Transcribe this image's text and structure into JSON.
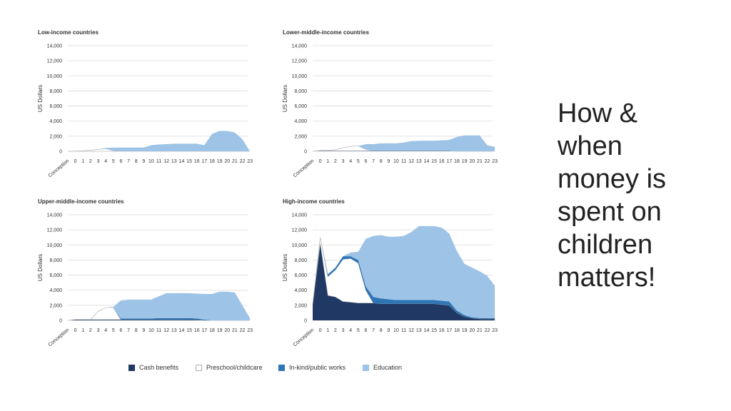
{
  "slide": {
    "title_lines": [
      "How &",
      "when",
      "money is",
      "spent on",
      "children",
      "matters!"
    ]
  },
  "colors": {
    "cash": "#1f3864",
    "preschool": "#ffffff",
    "inkind": "#2e75b6",
    "education": "#9dc3e6",
    "grid": "#d9d9d9"
  },
  "legend": [
    {
      "key": "cash",
      "label": "Cash benefits"
    },
    {
      "key": "preschool",
      "label": "Preschool/childcare"
    },
    {
      "key": "inkind",
      "label": "In-kind/public works"
    },
    {
      "key": "education",
      "label": "Education"
    }
  ],
  "chart_data": [
    {
      "type": "area",
      "stacked": true,
      "title": "Low-income countries",
      "ylabel": "US Dollars",
      "ylim": [
        0,
        14000
      ],
      "yticks": [
        "0",
        "2,000",
        "4,000",
        "6,000",
        "8,000",
        "10,000",
        "12,000",
        "14,000"
      ],
      "categories": [
        "Conception",
        "0",
        "1",
        "2",
        "3",
        "4",
        "5",
        "6",
        "7",
        "8",
        "9",
        "10",
        "11",
        "12",
        "13",
        "14",
        "15",
        "16",
        "17",
        "18",
        "19",
        "20",
        "21",
        "22",
        "23"
      ],
      "series": [
        {
          "name": "Cash benefits",
          "values": [
            0,
            0,
            0,
            0,
            0,
            0,
            0,
            0,
            0,
            0,
            0,
            0,
            0,
            0,
            0,
            0,
            0,
            0,
            0,
            0,
            0,
            0,
            0,
            0,
            0
          ]
        },
        {
          "name": "Preschool/childcare",
          "values": [
            0,
            20,
            60,
            150,
            250,
            350,
            80,
            0,
            0,
            0,
            0,
            0,
            0,
            0,
            0,
            0,
            0,
            0,
            0,
            0,
            0,
            0,
            0,
            0,
            0
          ]
        },
        {
          "name": "In-kind/public works",
          "values": [
            0,
            0,
            0,
            0,
            0,
            0,
            0,
            0,
            0,
            0,
            0,
            0,
            0,
            0,
            0,
            0,
            0,
            0,
            0,
            0,
            0,
            0,
            0,
            0,
            0
          ]
        },
        {
          "name": "Education",
          "values": [
            0,
            0,
            0,
            0,
            0,
            100,
            400,
            500,
            500,
            500,
            500,
            800,
            900,
            950,
            1000,
            1000,
            1000,
            1000,
            800,
            2300,
            2700,
            2700,
            2500,
            1600,
            0
          ]
        }
      ]
    },
    {
      "type": "area",
      "stacked": true,
      "title": "Lower-middle-income countries",
      "ylabel": "US Dollars",
      "ylim": [
        0,
        14000
      ],
      "yticks": [
        "0",
        "2,000",
        "4,000",
        "6,000",
        "8,000",
        "10,000",
        "12,000",
        "14,000"
      ],
      "categories": [
        "Conception",
        "0",
        "1",
        "2",
        "3",
        "4",
        "5",
        "6",
        "7",
        "8",
        "9",
        "10",
        "11",
        "12",
        "13",
        "14",
        "15",
        "16",
        "17",
        "18",
        "19",
        "20",
        "21",
        "22",
        "23"
      ],
      "series": [
        {
          "name": "Cash benefits",
          "values": [
            0,
            50,
            50,
            50,
            50,
            50,
            50,
            50,
            50,
            50,
            50,
            50,
            50,
            50,
            50,
            50,
            50,
            50,
            50,
            0,
            0,
            0,
            0,
            0,
            0
          ]
        },
        {
          "name": "Preschool/childcare",
          "values": [
            0,
            50,
            80,
            150,
            400,
            600,
            650,
            200,
            0,
            0,
            0,
            0,
            0,
            0,
            0,
            0,
            0,
            0,
            0,
            0,
            0,
            0,
            0,
            0,
            0
          ]
        },
        {
          "name": "In-kind/public works",
          "values": [
            0,
            0,
            0,
            0,
            0,
            0,
            0,
            0,
            0,
            0,
            0,
            0,
            0,
            0,
            0,
            0,
            0,
            0,
            0,
            0,
            0,
            0,
            0,
            0,
            0
          ]
        },
        {
          "name": "Education",
          "values": [
            0,
            0,
            0,
            0,
            0,
            0,
            0,
            700,
            900,
            1000,
            1000,
            1000,
            1100,
            1300,
            1350,
            1350,
            1350,
            1400,
            1450,
            1900,
            2100,
            2100,
            2100,
            800,
            600
          ]
        }
      ]
    },
    {
      "type": "area",
      "stacked": true,
      "title": "Upper-middle-income countries",
      "ylabel": "US Dollars",
      "ylim": [
        0,
        14000
      ],
      "yticks": [
        "0",
        "2,000",
        "4,000",
        "6,000",
        "8,000",
        "10,000",
        "12,000",
        "14,000"
      ],
      "categories": [
        "Conception",
        "0",
        "1",
        "2",
        "3",
        "4",
        "5",
        "6",
        "7",
        "8",
        "9",
        "10",
        "11",
        "12",
        "13",
        "14",
        "15",
        "16",
        "17",
        "18",
        "19",
        "20",
        "21",
        "22",
        "23"
      ],
      "series": [
        {
          "name": "Cash benefits",
          "values": [
            0,
            100,
            100,
            100,
            100,
            100,
            100,
            100,
            100,
            100,
            100,
            100,
            100,
            100,
            100,
            100,
            100,
            100,
            0,
            0,
            0,
            0,
            0,
            0,
            0
          ]
        },
        {
          "name": "Preschool/childcare",
          "values": [
            0,
            0,
            0,
            0,
            1100,
            1600,
            1600,
            0,
            0,
            0,
            0,
            0,
            0,
            0,
            0,
            0,
            0,
            0,
            0,
            0,
            0,
            0,
            0,
            0,
            0
          ]
        },
        {
          "name": "In-kind/public works",
          "values": [
            0,
            0,
            0,
            0,
            0,
            0,
            0,
            150,
            150,
            150,
            150,
            150,
            200,
            200,
            200,
            200,
            200,
            150,
            100,
            0,
            0,
            0,
            0,
            0,
            0
          ]
        },
        {
          "name": "Education",
          "values": [
            0,
            0,
            0,
            0,
            0,
            0,
            100,
            2400,
            2500,
            2500,
            2500,
            2500,
            2900,
            3300,
            3300,
            3300,
            3300,
            3300,
            3400,
            3500,
            3800,
            3800,
            3700,
            2000,
            300
          ]
        }
      ]
    },
    {
      "type": "area",
      "stacked": true,
      "title": "High-income countries",
      "ylabel": "US Dollars",
      "ylim": [
        0,
        14000
      ],
      "yticks": [
        "0",
        "2,000",
        "4,000",
        "6,000",
        "8,000",
        "10,000",
        "12,000",
        "14,000"
      ],
      "categories": [
        "Conception",
        "0",
        "1",
        "2",
        "3",
        "4",
        "5",
        "6",
        "7",
        "8",
        "9",
        "10",
        "11",
        "12",
        "13",
        "14",
        "15",
        "16",
        "17",
        "18",
        "19",
        "20",
        "21",
        "22",
        "23"
      ],
      "series": [
        {
          "name": "Cash benefits",
          "values": [
            2100,
            10200,
            3300,
            3100,
            2500,
            2400,
            2300,
            2300,
            2300,
            2200,
            2200,
            2200,
            2200,
            2200,
            2200,
            2200,
            2200,
            2100,
            2000,
            1000,
            500,
            300,
            200,
            200,
            200
          ]
        },
        {
          "name": "Preschool/childcare",
          "values": [
            0,
            800,
            2500,
            3600,
            5600,
            5800,
            5300,
            1700,
            0,
            0,
            0,
            0,
            0,
            0,
            0,
            0,
            0,
            0,
            0,
            0,
            0,
            0,
            0,
            0,
            0
          ]
        },
        {
          "name": "In-kind/public works",
          "values": [
            0,
            0,
            300,
            300,
            400,
            300,
            400,
            500,
            800,
            700,
            600,
            500,
            500,
            500,
            500,
            500,
            500,
            500,
            500,
            300,
            200,
            100,
            100,
            100,
            100
          ]
        },
        {
          "name": "Education",
          "values": [
            0,
            0,
            0,
            0,
            0,
            500,
            1100,
            6300,
            8100,
            8400,
            8300,
            8400,
            8500,
            9000,
            9800,
            9800,
            9800,
            9700,
            9000,
            7900,
            6800,
            6600,
            6200,
            5600,
            4300
          ]
        }
      ]
    }
  ]
}
